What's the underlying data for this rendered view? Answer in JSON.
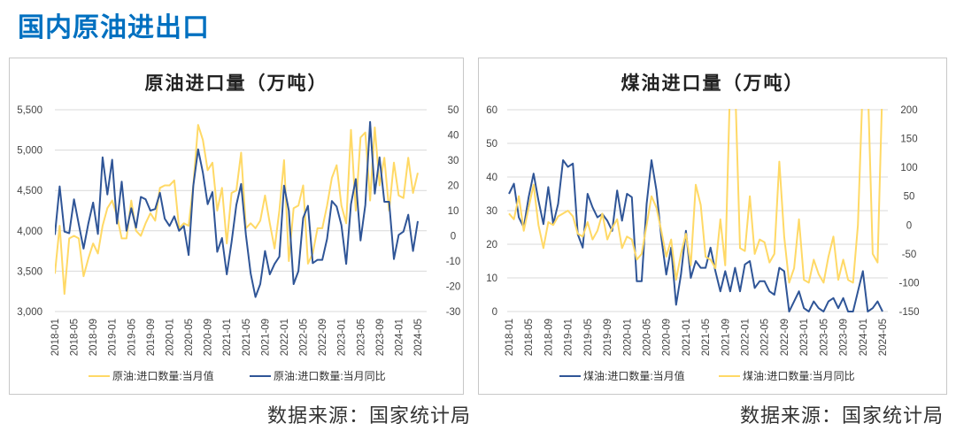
{
  "page_title": "国内原油进出口",
  "colors": {
    "title": "#0070c0",
    "blue": "#2f5597",
    "yellow": "#ffd966"
  },
  "chart_data": [
    {
      "type": "line",
      "title": "原油进口量（万吨）",
      "source": "数据来源：国家统计局",
      "x_tick_labels": [
        "2018-01",
        "2018-05",
        "2018-09",
        "2019-01",
        "2019-05",
        "2019-09",
        "2020-01",
        "2020-05",
        "2020-09",
        "2021-01",
        "2021-05",
        "2021-09",
        "2022-01",
        "2022-05",
        "2022-09",
        "2023-01",
        "2023-05",
        "2023-09",
        "2024-01",
        "2024-05"
      ],
      "x_start": "2018-01",
      "x_end": "2024-05",
      "y_left": {
        "range": [
          3000,
          5500
        ],
        "ticks": [
          "3,000",
          "3,500",
          "4,000",
          "4,500",
          "5,000",
          "5,500"
        ]
      },
      "y_right": {
        "range": [
          -30,
          50
        ],
        "ticks": [
          "-30",
          "-20",
          "-10",
          "0",
          "10",
          "20",
          "30",
          "40",
          "50"
        ]
      },
      "grid": true,
      "legend_position": "bottom",
      "series": [
        {
          "name": "原油:进口数量:当月值",
          "axis": "right",
          "color": "#ffd966",
          "values": [
            -15,
            4,
            -23,
            -1,
            0,
            -1,
            -16,
            -9,
            -3,
            -7,
            4,
            11,
            14,
            8,
            -1,
            -1,
            14,
            2,
            0,
            5,
            9,
            6,
            19,
            20,
            20,
            22,
            3,
            5,
            4,
            20,
            44,
            38,
            26,
            29,
            10,
            19,
            -3,
            17,
            18,
            33,
            3,
            5,
            3,
            6,
            16,
            5,
            -5,
            10,
            30,
            -10,
            11,
            12,
            20,
            -11,
            -7,
            3,
            3,
            12,
            23,
            28,
            12,
            5,
            42,
            10,
            39,
            41,
            14,
            43,
            20,
            31,
            10,
            29,
            16,
            15,
            31,
            17,
            25
          ]
        },
        {
          "name": "原油:进口数量:当月同比",
          "axis": "left",
          "color": "#2f5597",
          "values": [
            3950,
            4550,
            3990,
            3970,
            4390,
            4080,
            3780,
            4090,
            4350,
            3960,
            4910,
            4450,
            4880,
            4090,
            4610,
            4000,
            4280,
            4040,
            4420,
            4390,
            4250,
            4270,
            4470,
            4150,
            4060,
            4180,
            4000,
            4060,
            3700,
            4560,
            5010,
            4720,
            4330,
            4480,
            3740,
            3910,
            3460,
            3860,
            4320,
            4580,
            3950,
            3470,
            3180,
            3340,
            3750,
            3460,
            3590,
            3680,
            4560,
            4250,
            3340,
            3500,
            4160,
            4310,
            3600,
            3640,
            3640,
            3900,
            4370,
            4300,
            4070,
            3590,
            4330,
            4640,
            3880,
            4320,
            5350,
            4460,
            4910,
            4360,
            4360,
            3650,
            3950,
            3990,
            4200,
            3750,
            4120
          ]
        }
      ]
    },
    {
      "type": "line",
      "title": "煤油进口量（万吨）",
      "source": "数据来源：国家统计局",
      "x_tick_labels": [
        "2018-01",
        "2018-05",
        "2018-09",
        "2019-01",
        "2019-05",
        "2019-09",
        "2020-01",
        "2020-05",
        "2020-09",
        "2021-01",
        "2021-05",
        "2021-09",
        "2022-01",
        "2022-05",
        "2022-09",
        "2023-01",
        "2023-05",
        "2023-09",
        "2024-01",
        "2024-05"
      ],
      "x_start": "2018-01",
      "x_end": "2024-05",
      "y_left": {
        "range": [
          0,
          60
        ],
        "ticks": [
          "0",
          "10",
          "20",
          "30",
          "40",
          "50",
          "60"
        ]
      },
      "y_right": {
        "range": [
          -150,
          200
        ],
        "ticks": [
          "-150",
          "-100",
          "-50",
          "0",
          "50",
          "100",
          "150",
          "200"
        ]
      },
      "grid": true,
      "legend_position": "bottom",
      "series": [
        {
          "name": "煤油:进口数量:当月值",
          "axis": "left",
          "color": "#2f5597",
          "values": [
            35,
            38,
            28,
            25,
            34,
            41,
            33,
            26,
            37,
            26,
            32,
            45,
            43,
            44,
            23,
            19,
            35,
            31,
            28,
            29,
            27,
            24,
            36,
            27,
            35,
            34,
            9,
            9,
            32,
            45,
            36,
            22,
            11,
            19,
            2,
            11,
            24,
            10,
            15,
            13,
            13,
            19,
            12,
            6,
            12,
            6,
            13,
            6,
            14,
            15,
            7,
            9,
            9,
            6,
            5,
            13,
            12,
            0,
            3,
            6,
            1,
            0,
            3,
            1,
            0,
            3,
            4,
            1,
            4,
            0,
            0,
            6,
            12,
            0,
            1,
            3,
            0
          ]
        },
        {
          "name": "煤油:进口数量:当月同比",
          "axis": "right",
          "color": "#ffd966",
          "values": [
            20,
            10,
            50,
            -10,
            30,
            70,
            0,
            -40,
            5,
            0,
            15,
            20,
            25,
            15,
            -15,
            -20,
            5,
            -25,
            -10,
            20,
            -25,
            -5,
            10,
            -40,
            -20,
            -25,
            -60,
            -50,
            0,
            50,
            30,
            -10,
            -55,
            -25,
            -95,
            -50,
            -15,
            -70,
            70,
            35,
            -55,
            -60,
            -75,
            10,
            -70,
            250,
            250,
            -40,
            -45,
            50,
            -50,
            -25,
            -30,
            -65,
            -50,
            110,
            -20,
            -100,
            -75,
            10,
            -95,
            -100,
            -60,
            -85,
            -100,
            -55,
            -20,
            -95,
            -60,
            -95,
            -100,
            0,
            250,
            250,
            -50,
            -65,
            250
          ]
        }
      ]
    }
  ]
}
